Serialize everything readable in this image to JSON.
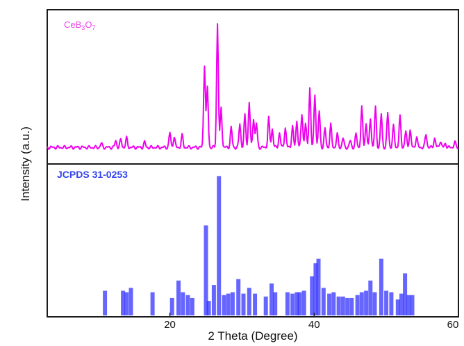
{
  "chart_data": {
    "type": "line",
    "xlabel": "2 Theta (Degree)",
    "ylabel": "Intensity (a.u.)",
    "xlim": [
      3,
      60
    ],
    "x_ticks": [
      20,
      40,
      60
    ],
    "grid": false,
    "legend": "none",
    "panels": [
      {
        "label_main": "CeB",
        "label_sub1": "3",
        "label_mid": "O",
        "label_sub2": "7",
        "label_color": "#ee44ee",
        "color": "#ee00ee",
        "kind": "line",
        "ylim": [
          0,
          100
        ],
        "baseline": 2,
        "peaks": [
          [
            10.5,
            3
          ],
          [
            12.5,
            5
          ],
          [
            13.2,
            6
          ],
          [
            14.0,
            7
          ],
          [
            16.5,
            4
          ],
          [
            20.0,
            11
          ],
          [
            20.6,
            8
          ],
          [
            21.7,
            9
          ],
          [
            24.8,
            62
          ],
          [
            25.2,
            45
          ],
          [
            26.6,
            93
          ],
          [
            27.1,
            30
          ],
          [
            28.5,
            15
          ],
          [
            29.7,
            18
          ],
          [
            30.4,
            24
          ],
          [
            31.0,
            34
          ],
          [
            31.6,
            22
          ],
          [
            32.0,
            18
          ],
          [
            33.7,
            22
          ],
          [
            34.2,
            14
          ],
          [
            35.2,
            11
          ],
          [
            36.0,
            15
          ],
          [
            37.0,
            16
          ],
          [
            37.6,
            20
          ],
          [
            38.3,
            25
          ],
          [
            38.8,
            18
          ],
          [
            39.4,
            45
          ],
          [
            40.1,
            40
          ],
          [
            40.7,
            27
          ],
          [
            41.5,
            14
          ],
          [
            42.3,
            17
          ],
          [
            43.2,
            10
          ],
          [
            44.0,
            7
          ],
          [
            45.0,
            5
          ],
          [
            45.8,
            10
          ],
          [
            46.6,
            30
          ],
          [
            47.2,
            18
          ],
          [
            47.8,
            22
          ],
          [
            48.5,
            30
          ],
          [
            49.3,
            25
          ],
          [
            50.2,
            26
          ],
          [
            51.0,
            16
          ],
          [
            51.9,
            23
          ],
          [
            52.7,
            12
          ],
          [
            53.3,
            13
          ],
          [
            54.2,
            8
          ],
          [
            55.5,
            10
          ],
          [
            56.7,
            7
          ],
          [
            57.5,
            5
          ],
          [
            58.2,
            3
          ],
          [
            59.5,
            4
          ]
        ]
      },
      {
        "label": "JCPDS 31-0253",
        "label_color": "#3344ee",
        "color": "#3333ff",
        "kind": "bar",
        "ylim": [
          0,
          100
        ],
        "bars": [
          [
            11.0,
            17
          ],
          [
            13.5,
            17
          ],
          [
            14.0,
            16
          ],
          [
            14.6,
            19
          ],
          [
            17.6,
            16
          ],
          [
            20.3,
            12
          ],
          [
            21.2,
            24
          ],
          [
            21.8,
            16
          ],
          [
            22.5,
            14
          ],
          [
            23.1,
            12
          ],
          [
            25.0,
            62
          ],
          [
            25.4,
            10
          ],
          [
            26.1,
            21
          ],
          [
            26.8,
            96
          ],
          [
            27.5,
            14
          ],
          [
            28.1,
            15
          ],
          [
            28.7,
            16
          ],
          [
            29.5,
            25
          ],
          [
            30.2,
            15
          ],
          [
            31.0,
            19
          ],
          [
            31.8,
            15
          ],
          [
            33.3,
            13
          ],
          [
            34.1,
            22
          ],
          [
            34.6,
            16
          ],
          [
            36.3,
            16
          ],
          [
            37.0,
            15
          ],
          [
            37.6,
            16
          ],
          [
            38.0,
            16
          ],
          [
            38.6,
            17
          ],
          [
            39.7,
            27
          ],
          [
            40.2,
            36
          ],
          [
            40.6,
            39
          ],
          [
            41.3,
            19
          ],
          [
            42.1,
            15
          ],
          [
            42.7,
            16
          ],
          [
            43.4,
            13
          ],
          [
            44.0,
            13
          ],
          [
            44.6,
            12
          ],
          [
            45.2,
            12
          ],
          [
            46.0,
            14
          ],
          [
            46.6,
            16
          ],
          [
            47.2,
            17
          ],
          [
            47.8,
            24
          ],
          [
            48.4,
            16
          ],
          [
            49.3,
            39
          ],
          [
            50.0,
            17
          ],
          [
            50.7,
            16
          ],
          [
            51.6,
            11
          ],
          [
            52.1,
            15
          ],
          [
            52.6,
            29
          ],
          [
            53.1,
            14
          ],
          [
            53.6,
            14
          ]
        ]
      }
    ]
  }
}
